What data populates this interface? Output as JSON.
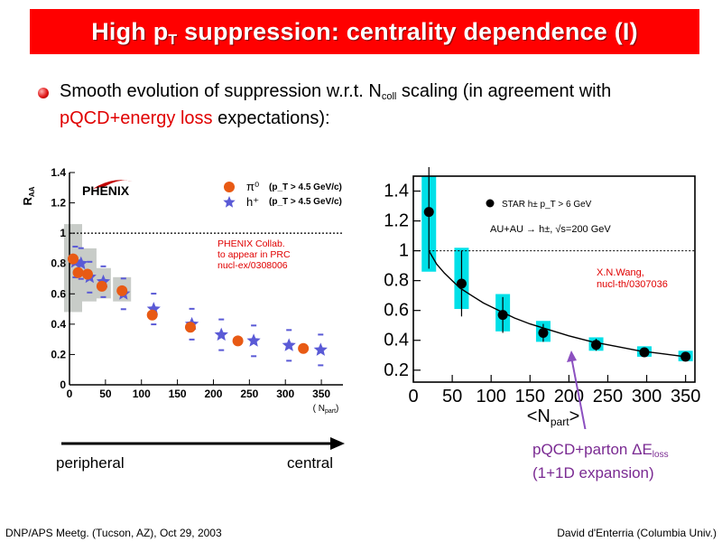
{
  "slide": {
    "title_main": "High p",
    "title_sub": "T",
    "title_rest": " suppression: centrality dependence (I)",
    "bullet_part1": "Smooth evolution of suppression w.r.t. N",
    "bullet_sub": "coll",
    "bullet_part2": " scaling (in agreement with",
    "bullet_red": "pQCD+energy loss",
    "bullet_part3": " expectations):",
    "peripheral_label": "peripheral",
    "central_label": "central",
    "pqcd_line1_main": "pQCD+parton  ΔE",
    "pqcd_line1_sub": "loss",
    "pqcd_line2": "(1+1D expansion)",
    "footer_left": "DNP/APS Meetg. (Tucson, AZ), Oct 29, 2003",
    "footer_right": "David d'Enterria (Columbia Univ.)"
  },
  "colors": {
    "title_bg": "#ff0000",
    "red_text": "#e00000",
    "pi0_marker": "#e85a14",
    "hplus_marker": "#5a5ad6",
    "cyan_band": "#00e0e8",
    "arrow_purple": "#8c50c0"
  },
  "chart_data": [
    {
      "type": "scatter",
      "ylabel": "R_AA",
      "xlabel": "( N_part )",
      "xlim": [
        0,
        380
      ],
      "ylim": [
        0,
        1.4
      ],
      "x_ticks": [
        "0",
        "50",
        "100",
        "150",
        "200",
        "250",
        "300",
        "350"
      ],
      "x_tick_values": [
        0,
        50,
        100,
        150,
        200,
        250,
        300,
        350
      ],
      "y_ticks": [
        "0",
        "0.2",
        "0.4",
        "0.6",
        "0.8",
        "1",
        "1.2",
        "1.4"
      ],
      "y_tick_values": [
        0,
        0.2,
        0.4,
        0.6,
        0.8,
        1.0,
        1.2,
        1.4
      ],
      "reference_line": 1.0,
      "logo_text": "PHENIX",
      "annotation": [
        "PHENIX Collab.",
        "to appear in PRC",
        "nucl-ex/0308006"
      ],
      "legend": [
        {
          "symbol": "π⁰",
          "label": "(p_T > 4.5 GeV/c)"
        },
        {
          "symbol": "h⁺",
          "label": "(p_T > 4.5 GeV/c)"
        }
      ],
      "series": [
        {
          "name": "π⁰",
          "marker": "circle",
          "x": [
            5,
            12,
            25,
            45,
            73,
            115,
            168,
            234,
            325
          ],
          "y": [
            0.83,
            0.74,
            0.73,
            0.65,
            0.62,
            0.46,
            0.38,
            0.29,
            0.24
          ]
        },
        {
          "name": "h⁺",
          "marker": "star",
          "x": [
            8,
            16,
            28,
            47,
            75,
            117,
            170,
            211,
            256,
            305,
            349
          ],
          "y": [
            0.81,
            0.8,
            0.71,
            0.68,
            0.6,
            0.5,
            0.4,
            0.33,
            0.29,
            0.26,
            0.23
          ]
        }
      ],
      "sys_boxes": [
        {
          "x": 5,
          "ylow": 0.48,
          "yhigh": 1.06
        },
        {
          "x": 25,
          "ylow": 0.55,
          "yhigh": 0.9
        },
        {
          "x": 45,
          "ylow": 0.57,
          "yhigh": 0.77
        },
        {
          "x": 73,
          "ylow": 0.55,
          "yhigh": 0.71
        }
      ]
    },
    {
      "type": "scatter",
      "xlabel": "<N_part>",
      "xlim": [
        0,
        362
      ],
      "ylim": [
        0.12,
        1.5
      ],
      "x_ticks": [
        "0",
        "50",
        "100",
        "150",
        "200",
        "250",
        "300",
        "350"
      ],
      "x_tick_values": [
        0,
        50,
        100,
        150,
        200,
        250,
        300,
        350
      ],
      "y_ticks": [
        "0.2",
        "0.4",
        "0.6",
        "0.8",
        "1",
        "1.2",
        "1.4"
      ],
      "y_tick_values": [
        0.2,
        0.4,
        0.6,
        0.8,
        1.0,
        1.2,
        1.4
      ],
      "reference_line": 1.0,
      "legend": [
        "STAR h±  p_T > 6 GeV",
        "AU+AU → h±, √s=200 GeV"
      ],
      "annotation": [
        "X.N.Wang,",
        "nucl-th/0307036"
      ],
      "series": [
        {
          "name": "STAR h±",
          "marker": "circle",
          "x": [
            20,
            62,
            115,
            167,
            235,
            297,
            350
          ],
          "y": [
            1.26,
            0.78,
            0.57,
            0.45,
            0.37,
            0.32,
            0.29
          ],
          "err": [
            0.38,
            0.22,
            0.12,
            0.06,
            0.04,
            0.03,
            0.03
          ],
          "band_low": [
            0.86,
            0.61,
            0.46,
            0.39,
            0.33,
            0.29,
            0.26
          ],
          "band_high": [
            1.5,
            1.02,
            0.71,
            0.53,
            0.42,
            0.36,
            0.33
          ]
        },
        {
          "name": "theory curve",
          "marker": "line",
          "x": [
            20,
            30,
            40,
            50,
            60,
            75,
            90,
            110,
            130,
            150,
            175,
            200,
            230,
            260,
            290,
            320,
            350
          ],
          "y": [
            1.0,
            0.91,
            0.85,
            0.8,
            0.75,
            0.7,
            0.65,
            0.6,
            0.55,
            0.51,
            0.47,
            0.43,
            0.39,
            0.36,
            0.33,
            0.31,
            0.29
          ]
        }
      ]
    }
  ]
}
